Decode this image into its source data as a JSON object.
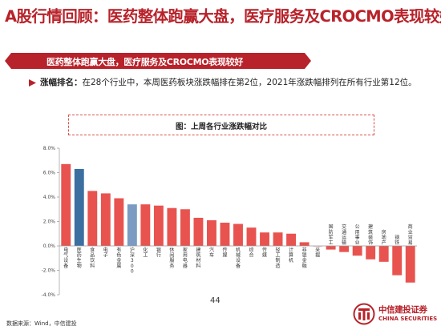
{
  "page": {
    "title": "A股行情回顾：医药整体跑赢大盘，医疗服务及CROCMO表现较好",
    "page_number": "44",
    "source": "数据来源：Wind，中信建投"
  },
  "banner": {
    "text": "医药整体跑赢大盘，医疗服务及CROCMO表现较好"
  },
  "summary": {
    "keyword": "涨幅排名：",
    "text": "在28个行业中，本周医药板块涨跌幅排在第2位，2021年涨跌幅排列在所有行业第12位。"
  },
  "logo": {
    "cn": "中信建投证券",
    "en": "CHINA SECURITIES"
  },
  "colors": {
    "brand": "#b8222a",
    "bar_default": "#e8534f",
    "bar_pharma": "#3a6fa0",
    "bar_index": "#7b9bc2"
  },
  "chart_data": {
    "type": "bar",
    "title": "图：上周各行业涨跌幅对比",
    "y_ticks": [
      "8.0%",
      "6.0%",
      "4.0%",
      "2.0%",
      "0.0%",
      "-2.0%",
      "-4.0%"
    ],
    "ylim": [
      -4,
      8
    ],
    "unit": "%",
    "grid": false,
    "categories": [
      "电气设备",
      "医药生物",
      "食品饮料",
      "电子",
      "有色金属",
      "沪深300",
      "化工",
      "银行",
      "休闲服务",
      "家用电器",
      "建筑材料",
      "汽车",
      "传媒",
      "机械设备",
      "综合",
      "传媒",
      "轻工制造",
      "计算机",
      "非银金融",
      "采掘",
      "国防军工",
      "交通运输",
      "公用事业",
      "建筑装饰",
      "房地产",
      "钢铁",
      "商业贸易"
    ],
    "values": [
      6.7,
      6.3,
      4.5,
      4.3,
      3.9,
      3.4,
      3.4,
      3.3,
      3.1,
      3.0,
      2.3,
      2.1,
      1.9,
      1.8,
      1.5,
      1.1,
      1.1,
      1.0,
      0.3,
      0.0,
      -0.3,
      -0.5,
      -0.8,
      -1.1,
      -1.3,
      -2.4,
      -3.0
    ],
    "highlight": {
      "医药生物": "pharma",
      "沪深300": "index"
    }
  }
}
